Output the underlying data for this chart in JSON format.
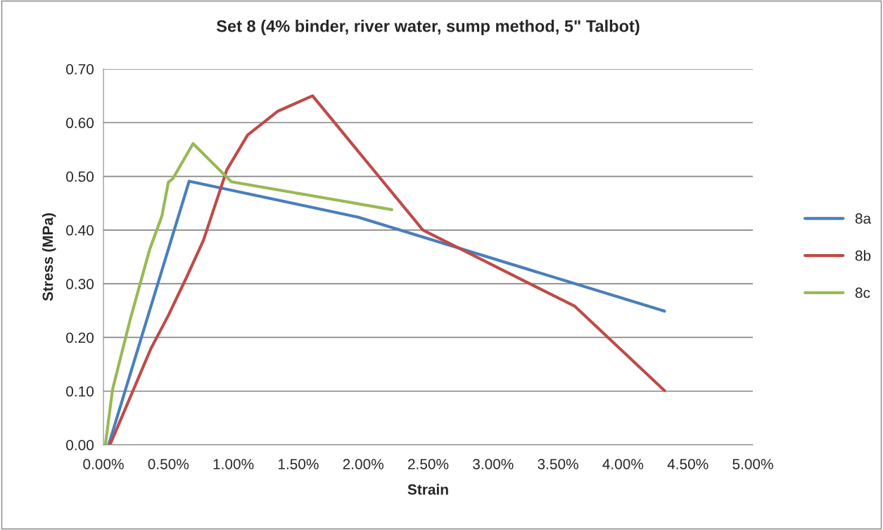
{
  "chart_data": {
    "type": "line",
    "title": "Set 8 (4% binder, river water, sump method, 5\" Talbot)",
    "xlabel": "Strain",
    "ylabel": "Stress (MPa)",
    "series": [
      {
        "name": "8a",
        "color": "#4a7ebb",
        "x": [
          0.04,
          0.66,
          1.96,
          4.32
        ],
        "values": [
          0,
          0.491,
          0.424,
          0.249
        ]
      },
      {
        "name": "8b",
        "color": "#be4b48",
        "x": [
          0.05,
          0.135,
          0.365,
          0.5,
          0.64,
          0.77,
          0.95,
          1.11,
          1.34,
          1.61,
          2.46,
          3.63,
          4.32
        ],
        "values": [
          0,
          0.048,
          0.179,
          0.241,
          0.312,
          0.381,
          0.512,
          0.577,
          0.621,
          0.65,
          0.4,
          0.258,
          0.101
        ]
      },
      {
        "name": "8c",
        "color": "#98b954",
        "x": [
          0.015,
          0.07,
          0.21,
          0.355,
          0.45,
          0.5,
          0.535,
          0.69,
          0.985,
          2.22
        ],
        "values": [
          0,
          0.103,
          0.237,
          0.363,
          0.426,
          0.489,
          0.496,
          0.561,
          0.49,
          0.438
        ]
      }
    ],
    "xlim": [
      0,
      5
    ],
    "xticks": [
      {
        "value": 0,
        "label": "0.00%"
      },
      {
        "value": 0.5,
        "label": "0.50%"
      },
      {
        "value": 1,
        "label": "1.00%"
      },
      {
        "value": 1.5,
        "label": "1.50%"
      },
      {
        "value": 2,
        "label": "2.00%"
      },
      {
        "value": 2.5,
        "label": "2.50%"
      },
      {
        "value": 3,
        "label": "3.00%"
      },
      {
        "value": 3.5,
        "label": "3.50%"
      },
      {
        "value": 4,
        "label": "4.00%"
      },
      {
        "value": 4.5,
        "label": "4.50%"
      },
      {
        "value": 5,
        "label": "5.00%"
      }
    ],
    "ylim": [
      0,
      0.7
    ],
    "yticks": [
      {
        "value": 0,
        "label": "0.00"
      },
      {
        "value": 0.1,
        "label": "0.10"
      },
      {
        "value": 0.2,
        "label": "0.20"
      },
      {
        "value": 0.3,
        "label": "0.30"
      },
      {
        "value": 0.4,
        "label": "0.40"
      },
      {
        "value": 0.5,
        "label": "0.50"
      },
      {
        "value": 0.6,
        "label": "0.60"
      },
      {
        "value": 0.7,
        "label": "0.70"
      }
    ],
    "grid": "y",
    "legend": "right",
    "marker": "none",
    "line_style": "solid"
  }
}
